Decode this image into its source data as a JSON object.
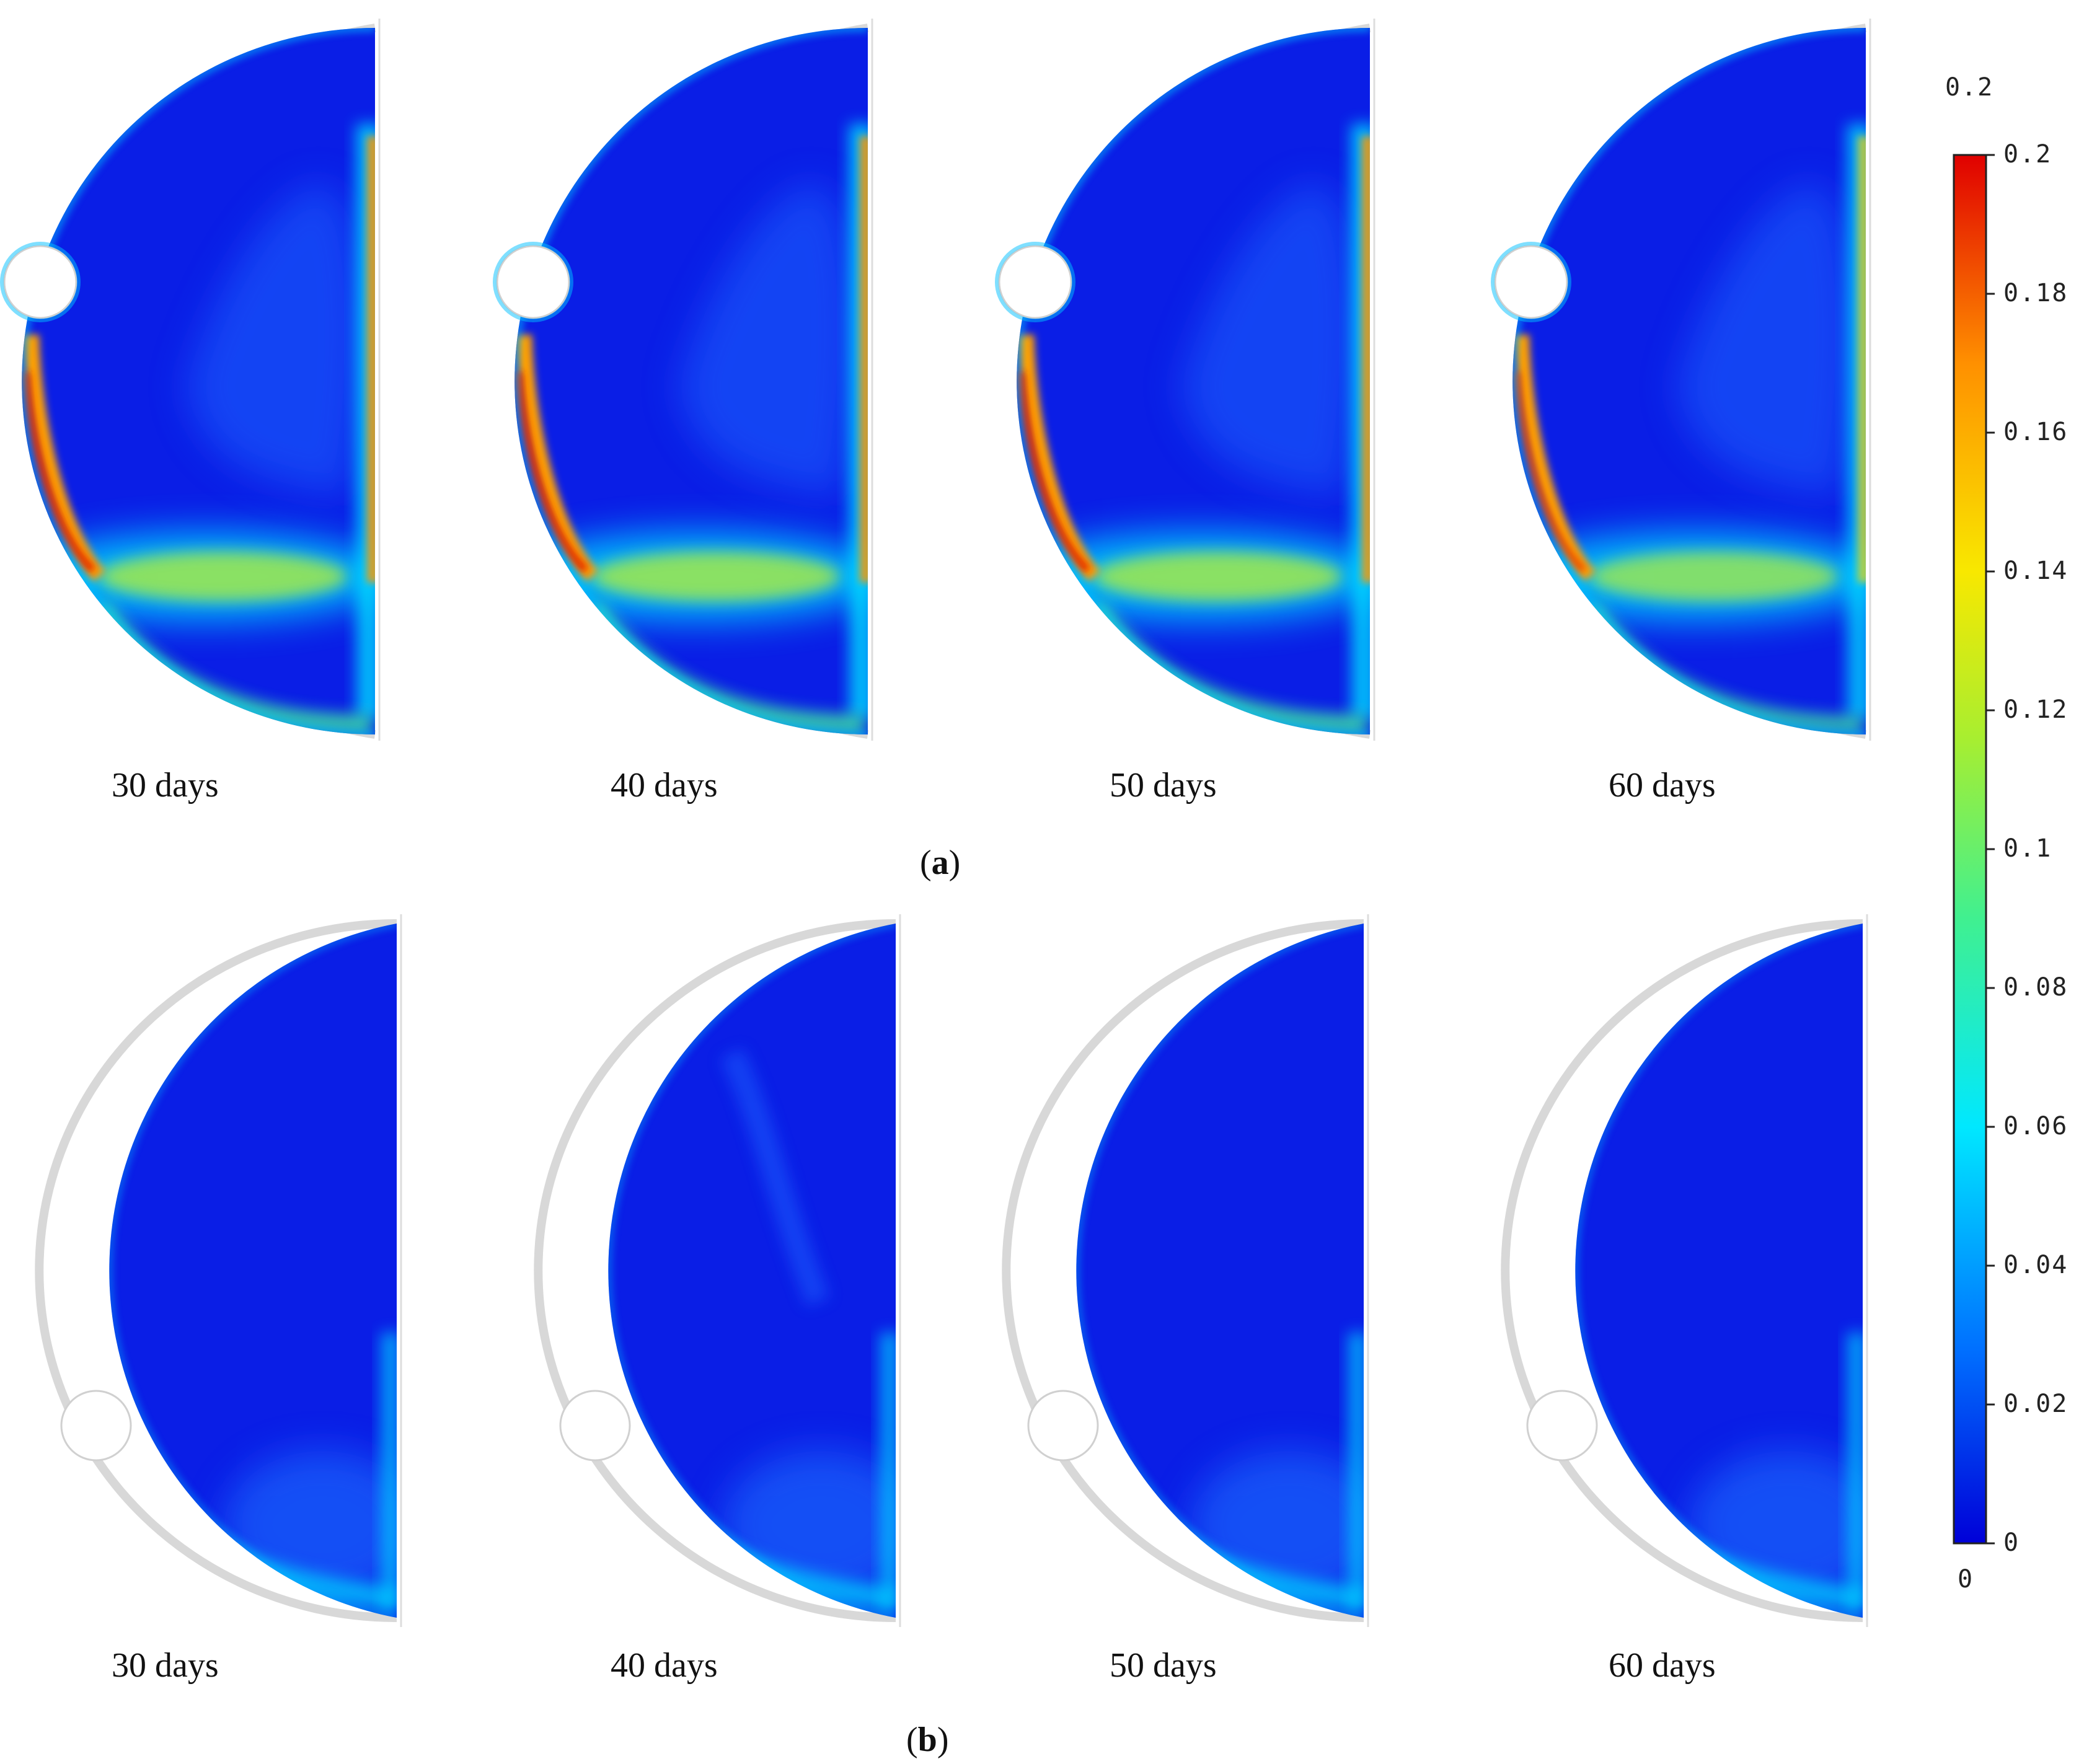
{
  "panel_a": {
    "caption_letter": "a",
    "labels": [
      "30 days",
      "40 days",
      "50 days",
      "60 days"
    ]
  },
  "panel_b": {
    "caption_letter": "b",
    "labels": [
      "30 days",
      "40 days",
      "50 days",
      "60 days"
    ]
  },
  "colorbar": {
    "top_label": "0.2",
    "bottom_label": "0",
    "ticks": [
      "0.2",
      "0.18",
      "0.16",
      "0.14",
      "0.12",
      "0.1",
      "0.08",
      "0.06",
      "0.04",
      "0.02",
      "0"
    ],
    "min": 0,
    "max": 0.2,
    "colors": [
      "#0000d8",
      "#0070ff",
      "#00e8ff",
      "#40f090",
      "#a8ee30",
      "#f8e800",
      "#ff9000",
      "#e00000"
    ]
  }
}
